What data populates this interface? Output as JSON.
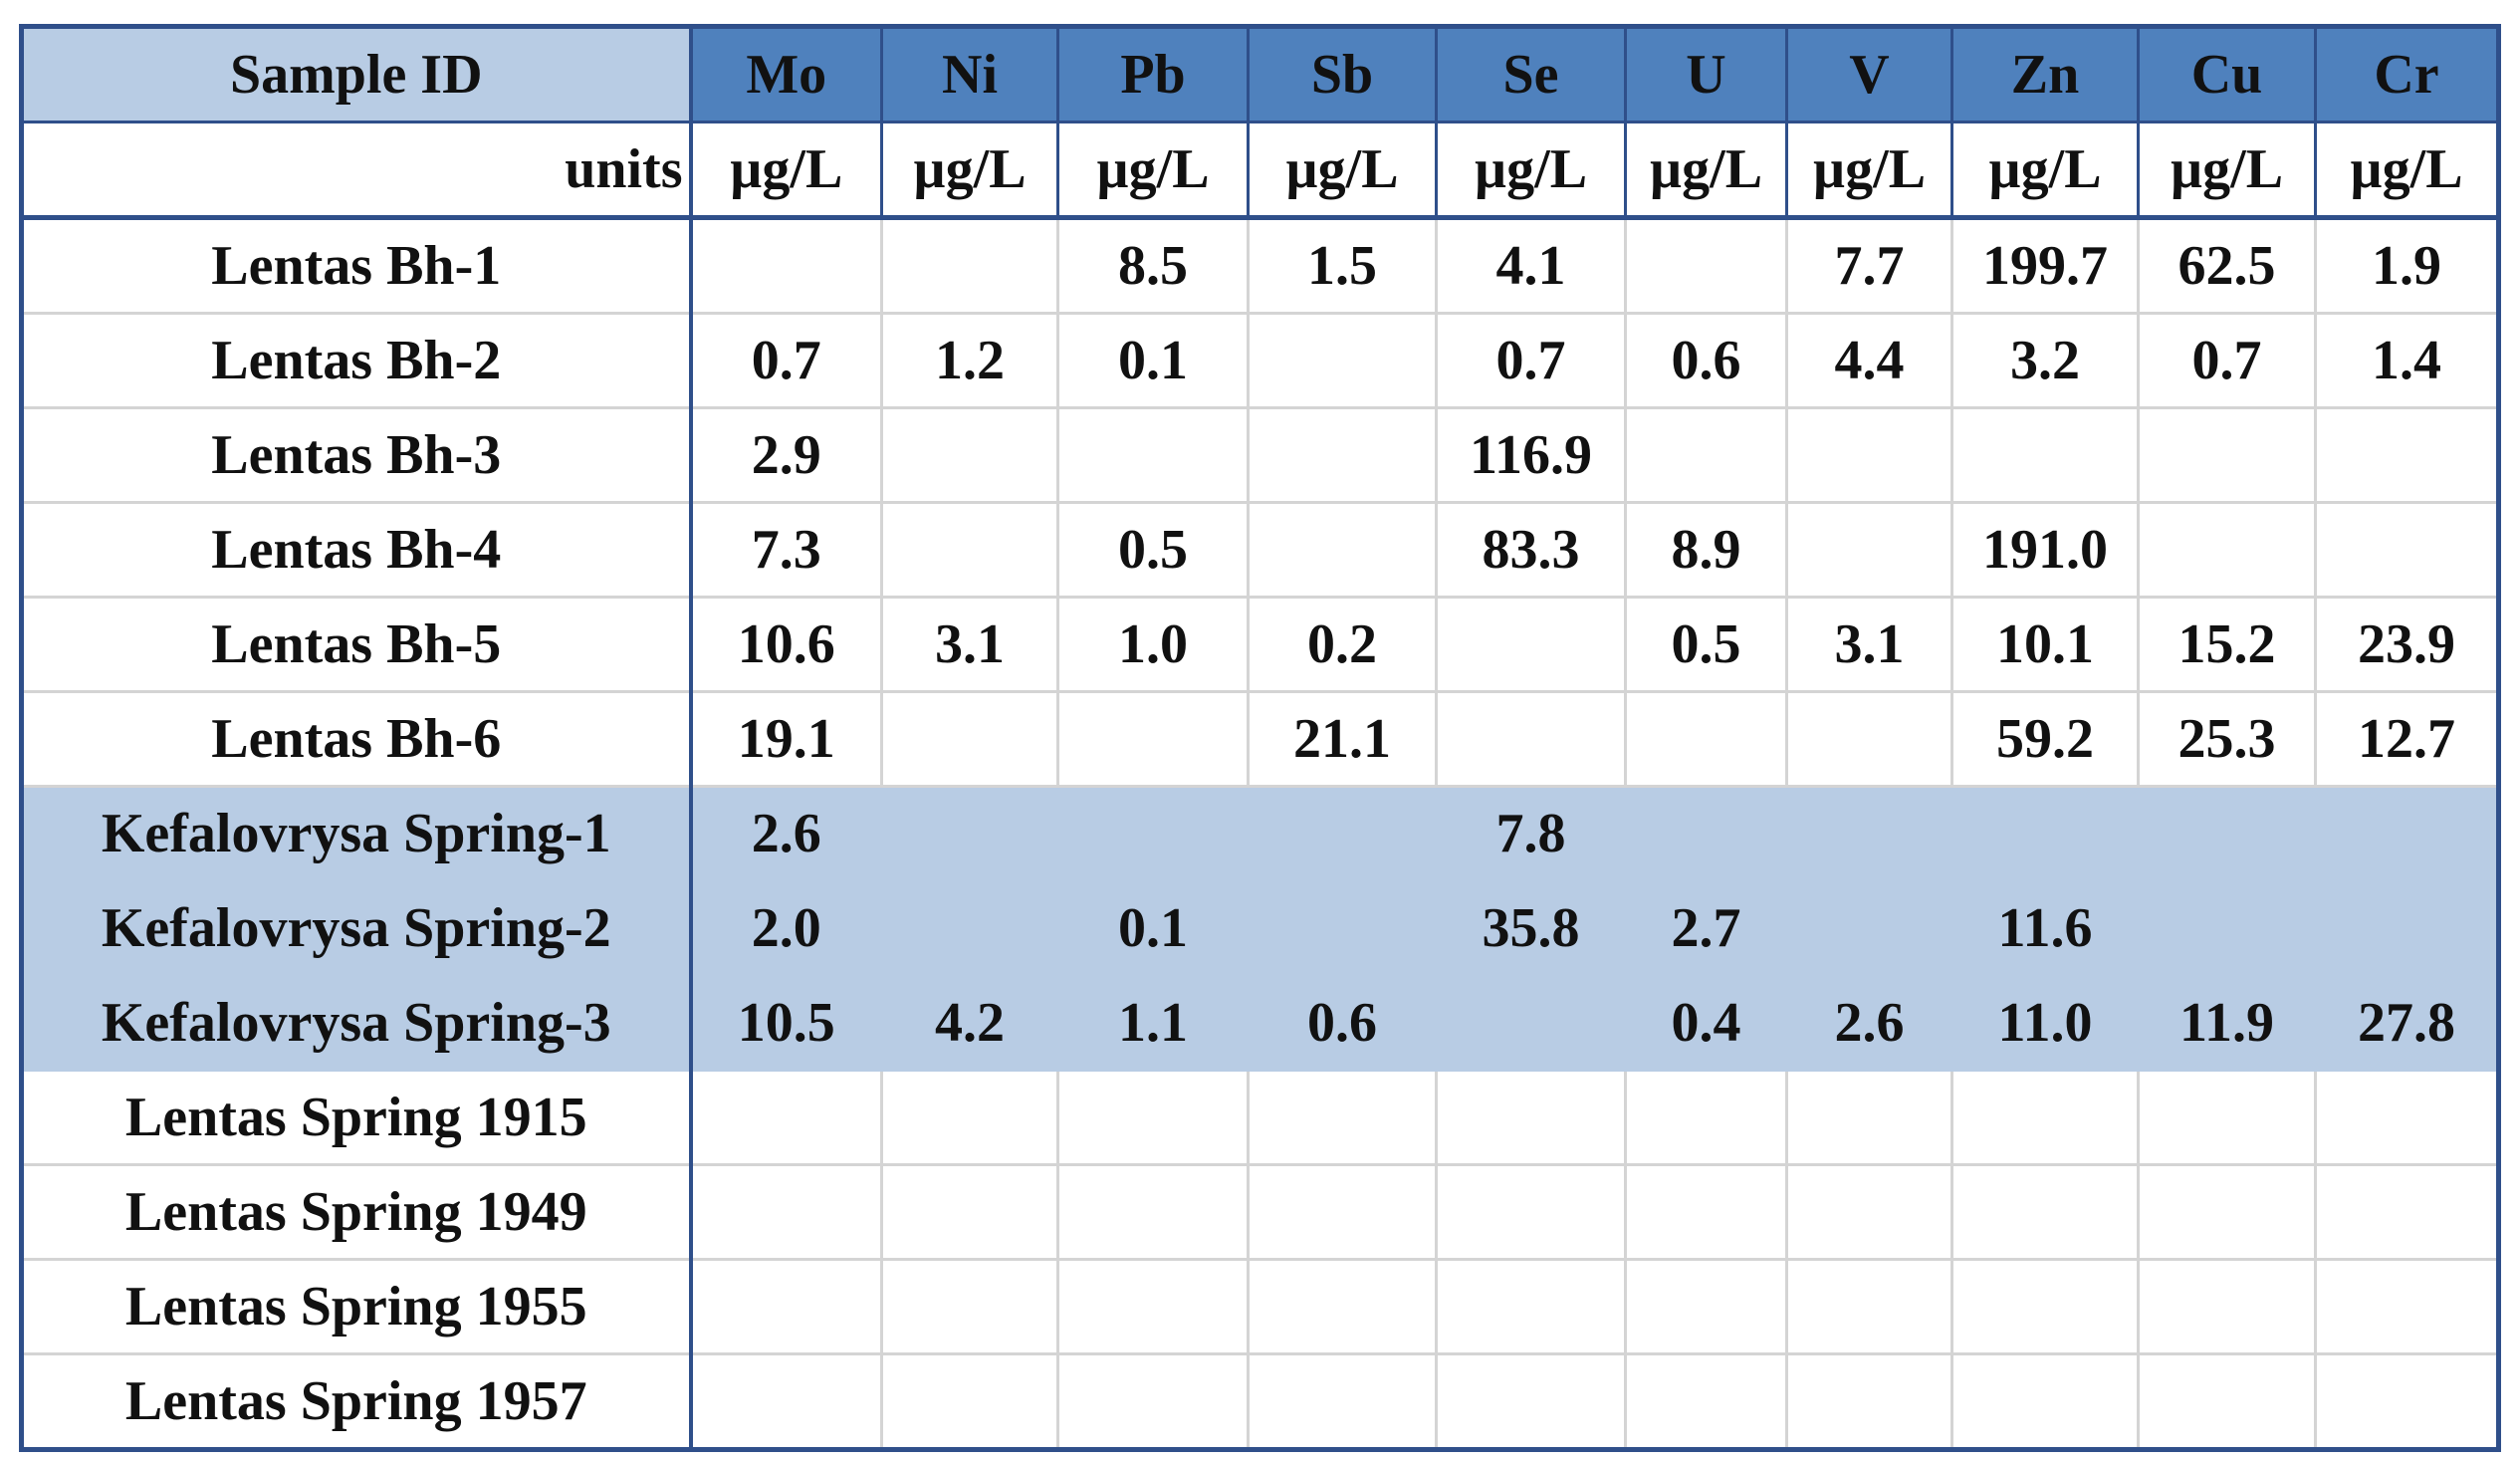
{
  "table": {
    "header": [
      "Sample ID",
      "Mo",
      "Ni",
      "Pb",
      "Sb",
      "Se",
      "U",
      "V",
      "Zn",
      "Cu",
      "Cr"
    ],
    "units": [
      "units",
      "µg/L",
      "µg/L",
      "µg/L",
      "µg/L",
      "µg/L",
      "µg/L",
      "µg/L",
      "µg/L",
      "µg/L",
      "µg/L"
    ],
    "rows": [
      [
        "Lentas Bh-1",
        null,
        null,
        "8.5",
        "1.5",
        "4.1",
        null,
        "7.7",
        "199.7",
        "62.5",
        "1.9"
      ],
      [
        "Lentas Bh-2",
        "0.7",
        "1.2",
        "0.1",
        null,
        "0.7",
        "0.6",
        "4.4",
        "3.2",
        "0.7",
        "1.4"
      ],
      [
        "Lentas Bh-3",
        "2.9",
        null,
        null,
        null,
        "116.9",
        null,
        null,
        null,
        null,
        null
      ],
      [
        "Lentas Bh-4",
        "7.3",
        null,
        "0.5",
        null,
        "83.3",
        "8.9",
        null,
        "191.0",
        null,
        null
      ],
      [
        "Lentas Bh-5",
        "10.6",
        "3.1",
        "1.0",
        "0.2",
        null,
        "0.5",
        "3.1",
        "10.1",
        "15.2",
        "23.9"
      ],
      [
        "Lentas Bh-6",
        "19.1",
        null,
        null,
        "21.1",
        null,
        null,
        null,
        "59.2",
        "25.3",
        "12.7"
      ],
      [
        "Kefalovrysa Spring-1",
        "2.6",
        null,
        null,
        null,
        "7.8",
        null,
        null,
        null,
        null,
        null
      ],
      [
        "Kefalovrysa Spring-2",
        "2.0",
        null,
        "0.1",
        null,
        "35.8",
        "2.7",
        null,
        "11.6",
        null,
        null
      ],
      [
        "Kefalovrysa Spring-3",
        "10.5",
        "4.2",
        "1.1",
        "0.6",
        null,
        "0.4",
        "2.6",
        "11.0",
        "11.9",
        "27.8"
      ],
      [
        "Lentas Spring 1915",
        null,
        null,
        null,
        null,
        null,
        null,
        null,
        null,
        null,
        null
      ],
      [
        "Lentas Spring 1949",
        null,
        null,
        null,
        null,
        null,
        null,
        null,
        null,
        null,
        null
      ],
      [
        "Lentas Spring 1955",
        null,
        null,
        null,
        null,
        null,
        null,
        null,
        null,
        null,
        null
      ],
      [
        "Lentas Spring 1957",
        null,
        null,
        null,
        null,
        null,
        null,
        null,
        null,
        null,
        null
      ]
    ]
  }
}
